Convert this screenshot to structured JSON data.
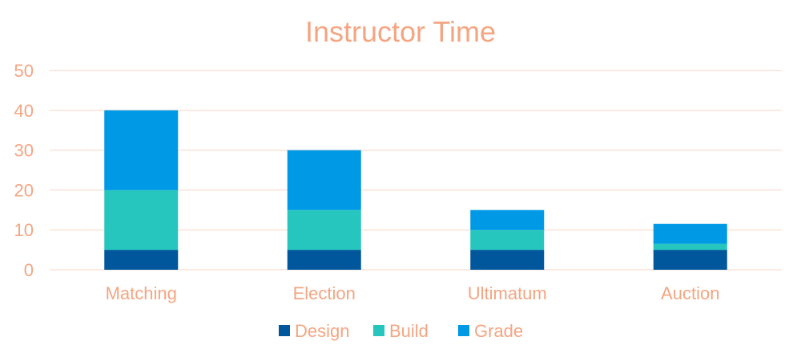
{
  "chart_data": {
    "type": "bar",
    "stacked": true,
    "title": "Instructor Time",
    "xlabel": "",
    "ylabel": "",
    "ylim": [
      0,
      50
    ],
    "yticks": [
      0,
      10,
      20,
      30,
      40,
      50
    ],
    "categories": [
      "Matching",
      "Election",
      "Ultimatum",
      "Auction"
    ],
    "series": [
      {
        "name": "Design",
        "values": [
          5,
          5,
          5,
          5
        ],
        "color": "#00579B"
      },
      {
        "name": "Build",
        "values": [
          15,
          10,
          5,
          1.5
        ],
        "color": "#26C6BE"
      },
      {
        "name": "Grade",
        "values": [
          20,
          15,
          5,
          5
        ],
        "color": "#0099E6"
      }
    ],
    "grid": true,
    "legend_position": "bottom",
    "text_color": "#F4A582"
  }
}
